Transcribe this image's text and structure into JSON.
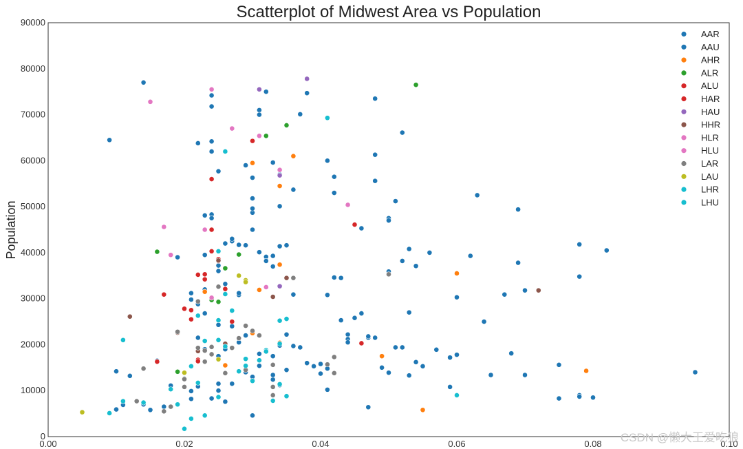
{
  "chart_data": {
    "type": "scatter",
    "title": "Scatterplot of Midwest Area vs Population",
    "xlabel": "",
    "ylabel": "Population",
    "xlim": [
      0.0,
      0.1
    ],
    "ylim": [
      0,
      90000
    ],
    "grid": false,
    "legend_position": "top-right",
    "x_ticks": [
      "0.00",
      "0.02",
      "0.04",
      "0.06",
      "0.08",
      "0.10"
    ],
    "y_ticks": [
      "0",
      "10000",
      "20000",
      "30000",
      "40000",
      "50000",
      "60000",
      "70000",
      "80000",
      "90000"
    ],
    "series": [
      {
        "name": "AAR",
        "color": "#1f77b4",
        "x": [
          0.009,
          0.014,
          0.022,
          0.024,
          0.024,
          0.025,
          0.029,
          0.031,
          0.031,
          0.032,
          0.033,
          0.034,
          0.036,
          0.037,
          0.038,
          0.041,
          0.042,
          0.042,
          0.048,
          0.048,
          0.048,
          0.052,
          0.051,
          0.05,
          0.05,
          0.063,
          0.069,
          0.078,
          0.082,
          0.078,
          0.069,
          0.062,
          0.056,
          0.053,
          0.054,
          0.052,
          0.067,
          0.07,
          0.06,
          0.05,
          0.047,
          0.053,
          0.064,
          0.068,
          0.075,
          0.078,
          0.08,
          0.095,
          0.059,
          0.055,
          0.051,
          0.047
        ],
        "y": [
          64500,
          77000,
          63800,
          64200,
          62000,
          57700,
          59000,
          71000,
          70000,
          75000,
          59600,
          57000,
          53700,
          70100,
          74700,
          60000,
          56500,
          53000,
          73500,
          61300,
          55600,
          66100,
          51200,
          47500,
          47000,
          52500,
          49400,
          41800,
          40500,
          34800,
          37800,
          39300,
          40000,
          40800,
          37100,
          38200,
          30900,
          31800,
          30300,
          35900,
          21500,
          27000,
          25000,
          18100,
          15600,
          9000,
          8500,
          14000,
          10800,
          15300,
          19400,
          6400
        ]
      },
      {
        "name": "AAU",
        "color": "#1f77b4",
        "x": [
          0.01,
          0.012,
          0.019,
          0.021,
          0.021,
          0.022,
          0.023,
          0.023,
          0.024,
          0.024,
          0.025,
          0.025,
          0.026,
          0.027,
          0.027,
          0.028,
          0.028,
          0.029,
          0.03,
          0.03,
          0.031,
          0.032,
          0.033,
          0.033,
          0.034,
          0.034,
          0.035,
          0.036,
          0.04,
          0.041,
          0.042,
          0.043,
          0.044,
          0.046,
          0.047,
          0.03,
          0.03,
          0.03,
          0.022,
          0.023,
          0.025,
          0.026,
          0.027,
          0.028,
          0.029,
          0.031,
          0.033,
          0.034,
          0.035,
          0.036,
          0.037,
          0.038,
          0.039,
          0.041,
          0.043,
          0.044,
          0.045,
          0.046,
          0.048,
          0.05,
          0.052,
          0.053,
          0.054,
          0.055,
          0.057,
          0.059,
          0.06,
          0.065,
          0.07,
          0.075,
          0.078,
          0.044,
          0.016,
          0.017,
          0.018,
          0.02,
          0.021,
          0.022,
          0.024,
          0.025,
          0.026,
          0.027,
          0.029,
          0.03,
          0.031,
          0.033,
          0.034,
          0.035,
          0.03,
          0.024,
          0.024,
          0.021,
          0.025,
          0.028,
          0.023,
          0.032,
          0.026,
          0.023,
          0.025,
          0.04,
          0.041,
          0.033,
          0.03,
          0.025,
          0.01,
          0.011,
          0.014,
          0.015,
          0.049
        ],
        "y": [
          14200,
          13200,
          39000,
          31200,
          29800,
          28800,
          39500,
          48100,
          48300,
          47500,
          37200,
          36000,
          42000,
          42500,
          43000,
          41700,
          30800,
          41600,
          48700,
          49600,
          40100,
          39100,
          39300,
          37000,
          41400,
          50100,
          41600,
          30900,
          13700,
          30800,
          34600,
          34500,
          22200,
          45300,
          21800,
          51800,
          56300,
          45000,
          21500,
          19000,
          21000,
          19000,
          24000,
          20500,
          22000,
          18000,
          17500,
          19800,
          22200,
          19700,
          19400,
          16000,
          15300,
          10200,
          25300,
          21200,
          25800,
          26800,
          21500,
          13900,
          19400,
          13300,
          16200,
          15300,
          18900,
          17200,
          17800,
          13400,
          13400,
          8300,
          8700,
          20500,
          16500,
          6500,
          11100,
          12600,
          9900,
          10900,
          8300,
          10000,
          7600,
          11500,
          14000,
          12300,
          15400,
          12400,
          11200,
          14500,
          4600,
          71800,
          74200,
          8200,
          17500,
          31200,
          32000,
          38200,
          33200,
          26800,
          24300,
          15800,
          14800,
          13400,
          13000,
          11500,
          5900,
          6900,
          7000,
          5800,
          15000
        ]
      },
      {
        "name": "AHR",
        "color": "#ff7f0e",
        "x": [
          0.03,
          0.034,
          0.036,
          0.034,
          0.031,
          0.034,
          0.049,
          0.055,
          0.06,
          0.079,
          0.03,
          0.026,
          0.023
        ],
        "y": [
          59500,
          54500,
          61000,
          37400,
          31900,
          20400,
          17500,
          5800,
          35500,
          14300,
          22500,
          15500,
          31500
        ]
      },
      {
        "name": "ALR",
        "color": "#2ca02c",
        "x": [
          0.054,
          0.035,
          0.032,
          0.016,
          0.024,
          0.028,
          0.026,
          0.025,
          0.019
        ],
        "y": [
          76500,
          67700,
          65400,
          40200,
          29700,
          39600,
          36600,
          29300,
          14100
        ]
      },
      {
        "name": "ALU",
        "color": "#d62728",
        "x": [
          0.03,
          0.024,
          0.024,
          0.022,
          0.023,
          0.017,
          0.021,
          0.045,
          0.046,
          0.016,
          0.022,
          0.025,
          0.027,
          0.024
        ],
        "y": [
          64300,
          56000,
          45000,
          35200,
          34200,
          30900,
          25500,
          46100,
          20300,
          16300,
          16700,
          38600,
          25000,
          40300
        ]
      },
      {
        "name": "HAR",
        "color": "#d62728",
        "x": [
          0.025,
          0.021,
          0.023,
          0.026,
          0.022,
          0.02
        ],
        "y": [
          38200,
          27500,
          35300,
          32100,
          16400,
          27800
        ]
      },
      {
        "name": "HAU",
        "color": "#9467bd",
        "x": [
          0.038,
          0.031,
          0.034,
          0.034
        ],
        "y": [
          77800,
          75500,
          56800,
          32700
        ]
      },
      {
        "name": "HHR",
        "color": "#8c564b",
        "x": [
          0.012,
          0.035,
          0.025,
          0.019,
          0.022,
          0.026,
          0.072,
          0.033
        ],
        "y": [
          26100,
          34500,
          38300,
          22600,
          18600,
          20200,
          31800,
          30400
        ]
      },
      {
        "name": "HLR",
        "color": "#e377c2",
        "x": [
          0.015,
          0.027,
          0.034,
          0.024,
          0.018,
          0.032
        ],
        "y": [
          72800,
          67000,
          58000,
          75500,
          39500,
          32500
        ]
      },
      {
        "name": "HLU",
        "color": "#e377c2",
        "x": [
          0.031,
          0.044,
          0.017,
          0.023,
          0.024
        ],
        "y": [
          65400,
          50400,
          45600,
          45000,
          30200
        ]
      },
      {
        "name": "LAR",
        "color": "#7f7f7f",
        "x": [
          0.014,
          0.019,
          0.023,
          0.024,
          0.025,
          0.03,
          0.033,
          0.036,
          0.042,
          0.041,
          0.02,
          0.022,
          0.028,
          0.017,
          0.018,
          0.013,
          0.02,
          0.023,
          0.026,
          0.029,
          0.033,
          0.042,
          0.05,
          0.022,
          0.029,
          0.031,
          0.024,
          0.027,
          0.033
        ],
        "y": [
          14800,
          22800,
          18700,
          19500,
          32600,
          23000,
          9000,
          34500,
          17300,
          15700,
          12500,
          29400,
          21400,
          5500,
          6500,
          7700,
          10800,
          16300,
          13800,
          14500,
          15600,
          13800,
          35300,
          19300,
          24100,
          22000,
          17900,
          19300,
          10800
        ]
      },
      {
        "name": "LAU",
        "color": "#bcbd22",
        "x": [
          0.005,
          0.028,
          0.029,
          0.029,
          0.025,
          0.02
        ],
        "y": [
          5300,
          35000,
          34000,
          33600,
          16800,
          13900
        ]
      },
      {
        "name": "LHR",
        "color": "#17becf",
        "x": [
          0.011,
          0.014,
          0.009,
          0.018,
          0.02,
          0.022,
          0.022,
          0.026,
          0.025,
          0.025,
          0.029,
          0.031,
          0.03,
          0.035,
          0.033,
          0.034,
          0.06,
          0.041,
          0.019,
          0.021,
          0.026,
          0.029,
          0.032,
          0.034,
          0.035,
          0.023
        ],
        "y": [
          21000,
          7400,
          5100,
          10300,
          1700,
          11700,
          26300,
          62000,
          40300,
          25300,
          16900,
          16600,
          12100,
          8800,
          7800,
          20200,
          9000,
          69300,
          7000,
          3900,
          19600,
          15400,
          18800,
          25200,
          25600,
          4600
        ]
      },
      {
        "name": "LHU",
        "color": "#17becf",
        "x": [
          0.023,
          0.026,
          0.027,
          0.021,
          0.025,
          0.025,
          0.011,
          0.028,
          0.032,
          0.034
        ],
        "y": [
          20800,
          31000,
          27400,
          15300,
          8600,
          21000,
          7700,
          14200,
          18500,
          11400
        ]
      }
    ]
  },
  "watermark": "CSDN @懒大王爱吃狼"
}
